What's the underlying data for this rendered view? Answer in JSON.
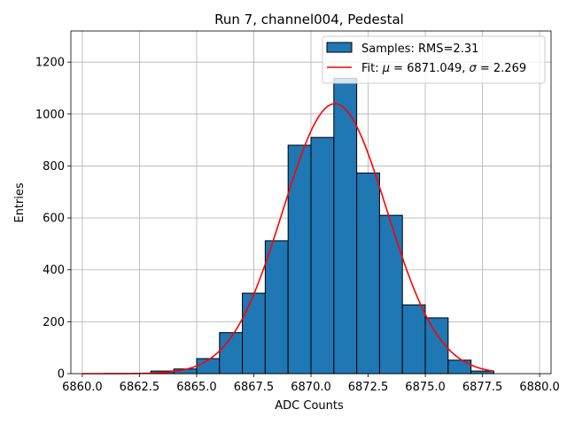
{
  "chart_data": {
    "type": "bar",
    "title": "Run 7, channel004, Pedestal",
    "xlabel": "ADC Counts",
    "ylabel": "Entries",
    "xlim": [
      6859.5,
      6880.5
    ],
    "ylim": [
      0,
      1320
    ],
    "grid": true,
    "legend_placement": "top-right",
    "x_ticks": [
      6860.0,
      6862.5,
      6865.0,
      6867.5,
      6870.0,
      6872.5,
      6875.0,
      6877.5,
      6880.0
    ],
    "x_tick_labels": [
      "6860.0",
      "6862.5",
      "6865.0",
      "6867.5",
      "6870.0",
      "6872.5",
      "6875.0",
      "6877.5",
      "6880.0"
    ],
    "y_ticks": [
      0,
      200,
      400,
      600,
      800,
      1000,
      1200
    ],
    "y_tick_labels": [
      "0",
      "200",
      "400",
      "600",
      "800",
      "1000",
      "1200"
    ],
    "histogram": {
      "name": "Samples: RMS=2.31",
      "color": "#1f77b4",
      "edge_color": "#000000",
      "bin_edges": [
        6863,
        6864,
        6865,
        6866,
        6867,
        6868,
        6869,
        6870,
        6871,
        6872,
        6873,
        6874,
        6875,
        6876,
        6877,
        6878
      ],
      "counts": [
        10,
        18,
        58,
        158,
        310,
        512,
        880,
        910,
        1138,
        773,
        610,
        265,
        215,
        52,
        10
      ]
    },
    "fit": {
      "name_prefix": "Fit: ",
      "mu_symbol": "μ",
      "mu_text": " = 6871.049, ",
      "sigma_symbol": "σ",
      "sigma_text": " = 2.269",
      "color": "#ff0000",
      "mu": 6871.049,
      "sigma": 2.269,
      "amplitude": 1040,
      "x_range": [
        6860,
        6878
      ]
    }
  }
}
